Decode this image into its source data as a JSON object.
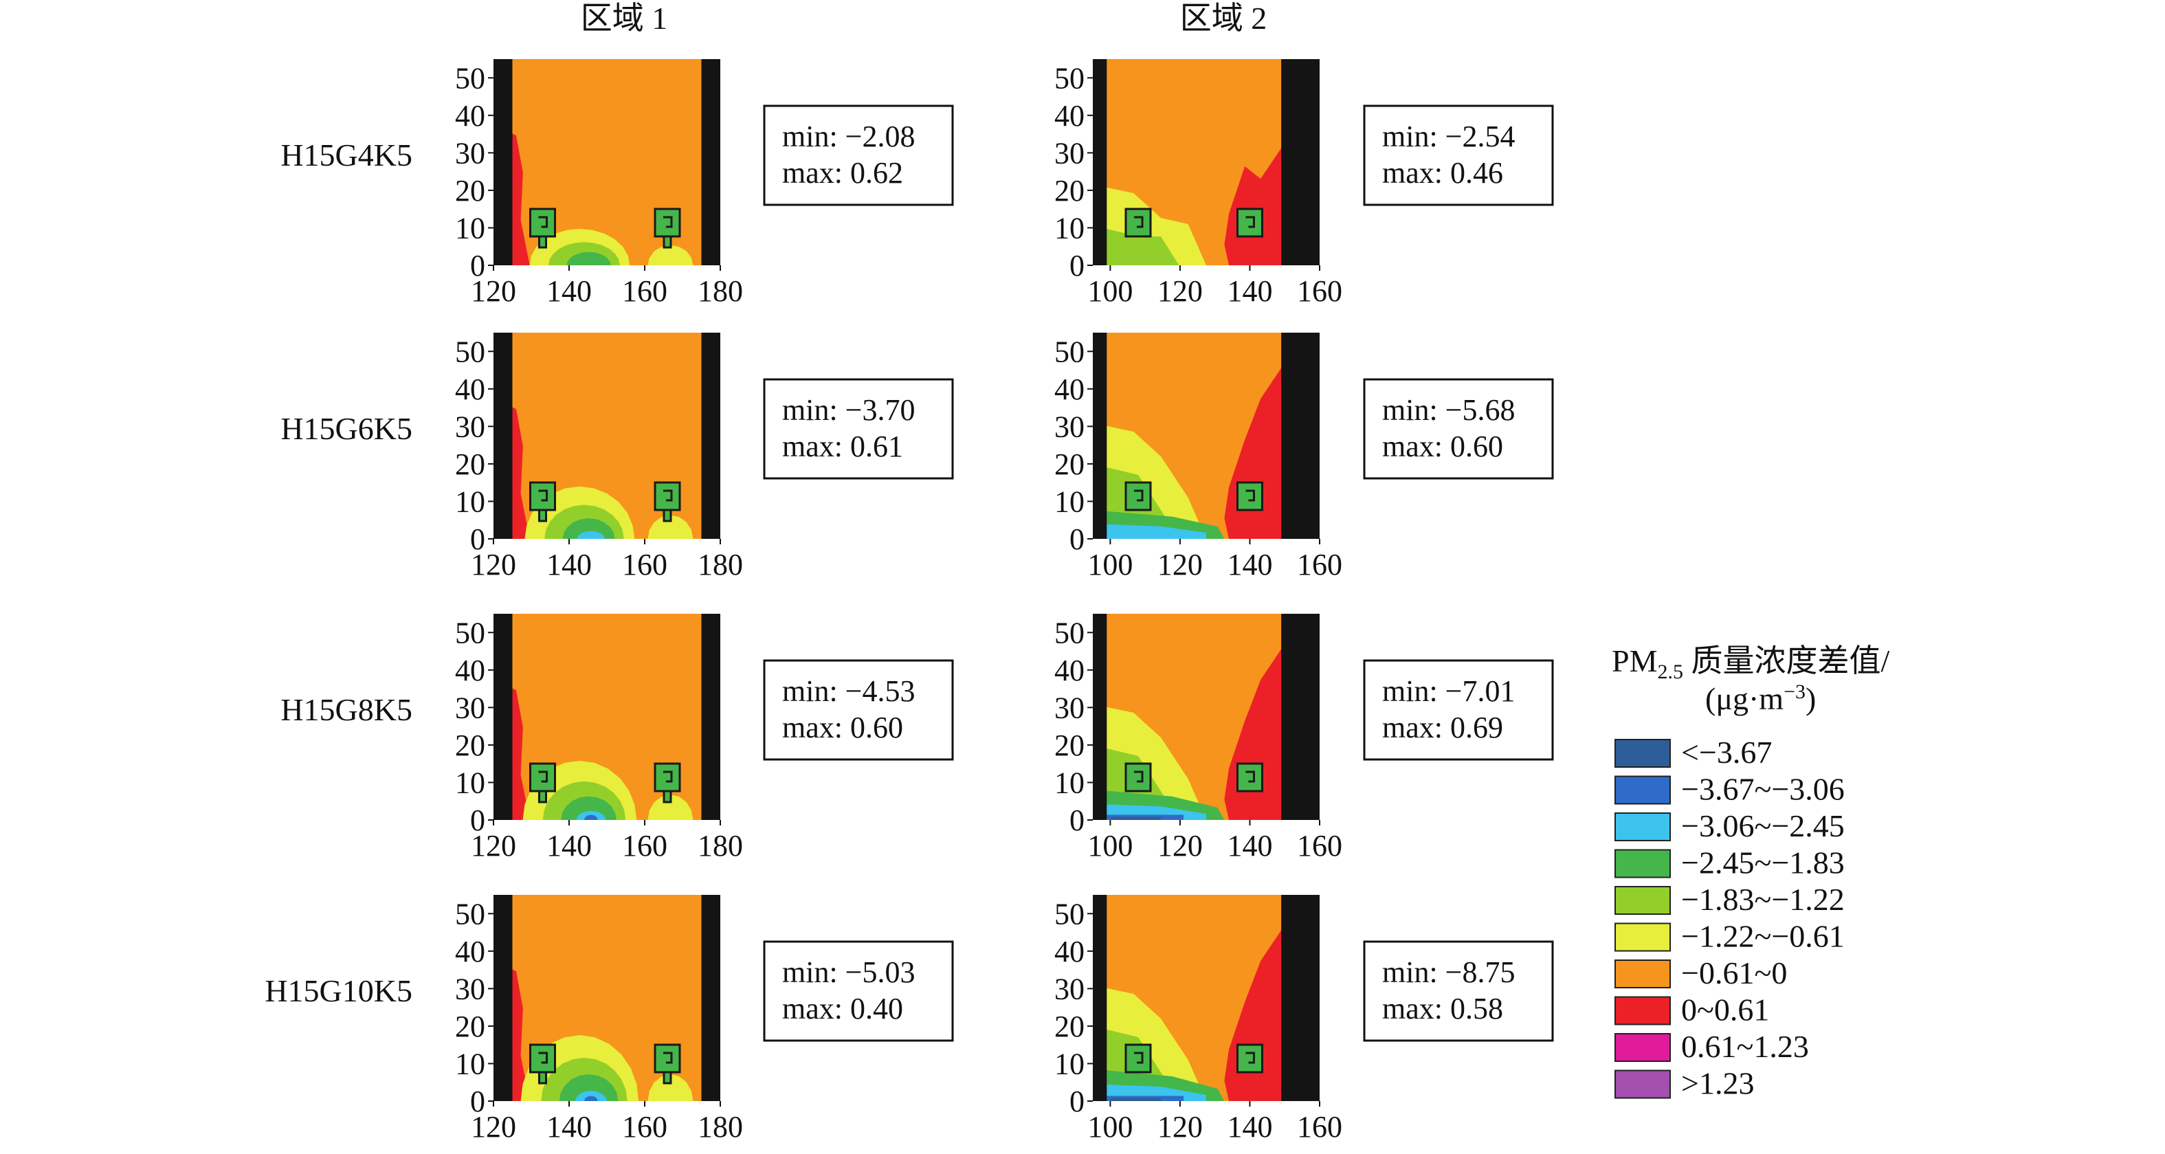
{
  "figure": {
    "column_titles": [
      "区域 1",
      "区域 2"
    ],
    "row_labels": [
      "H15G4K5",
      "H15G6K5",
      "H15G8K5",
      "H15G10K5"
    ]
  },
  "legend": {
    "title_prefix": "PM",
    "title_subscript": "2.5",
    "title_suffix": " 质量浓度差值/",
    "unit_prefix": "(μg·m",
    "unit_superscript": "−3",
    "unit_suffix": ")"
  },
  "colors": {
    "background_field": "#F7941D",
    "wall": "#141414",
    "text": "#111111"
  },
  "chart_data": {
    "type": "heatmap",
    "quantity": "PM2.5 mass concentration difference",
    "unit": "μg·m−3",
    "bins": [
      {
        "label": "<−3.67",
        "color": "#2E5E97"
      },
      {
        "label": "−3.67~−3.06",
        "color": "#2F6BC8"
      },
      {
        "label": "−3.06~−2.45",
        "color": "#3CC3EE"
      },
      {
        "label": "−2.45~−1.83",
        "color": "#45B649"
      },
      {
        "label": "−1.83~−1.22",
        "color": "#93CF2B"
      },
      {
        "label": "−1.22~−0.61",
        "color": "#E8EE3C"
      },
      {
        "label": "−0.61~0",
        "color": "#F7941D"
      },
      {
        "label": "0~0.61",
        "color": "#EC2128"
      },
      {
        "label": "0.61~1.23",
        "color": "#E11C9B"
      },
      {
        "label": ">1.23",
        "color": "#A350AE"
      }
    ],
    "regions": [
      {
        "name": "区域 1",
        "xlim": [
          120,
          180
        ],
        "xticks": [
          "120",
          "140",
          "160",
          "180"
        ],
        "ylim": [
          0,
          55
        ],
        "yticks": [
          "0",
          "10",
          "20",
          "30",
          "40",
          "50"
        ],
        "street_x": [
          125,
          175
        ],
        "trees_x": [
          133,
          166
        ]
      },
      {
        "name": "区域 2",
        "xlim": [
          95,
          160
        ],
        "xticks": [
          "100",
          "120",
          "140",
          "160"
        ],
        "ylim": [
          0,
          55
        ],
        "yticks": [
          "0",
          "10",
          "20",
          "30",
          "40",
          "50"
        ],
        "street_x": [
          99,
          149
        ],
        "trees_x": [
          108,
          140
        ]
      }
    ],
    "panels": [
      {
        "row": "H15G4K5",
        "region": "区域 1",
        "min": "−2.08",
        "max": "0.62",
        "min_label": "min: −2.08",
        "max_label": "max: 0.62"
      },
      {
        "row": "H15G4K5",
        "region": "区域 2",
        "min": "−2.54",
        "max": "0.46",
        "min_label": "min: −2.54",
        "max_label": "max: 0.46"
      },
      {
        "row": "H15G6K5",
        "region": "区域 1",
        "min": "−3.70",
        "max": "0.61",
        "min_label": "min: −3.70",
        "max_label": "max: 0.61"
      },
      {
        "row": "H15G6K5",
        "region": "区域 2",
        "min": "−5.68",
        "max": "0.60",
        "min_label": "min: −5.68",
        "max_label": "max: 0.60"
      },
      {
        "row": "H15G8K5",
        "region": "区域 1",
        "min": "−4.53",
        "max": "0.60",
        "min_label": "min: −4.53",
        "max_label": "max: 0.60"
      },
      {
        "row": "H15G8K5",
        "region": "区域 2",
        "min": "−7.01",
        "max": "0.69",
        "min_label": "min: −7.01",
        "max_label": "max: 0.69"
      },
      {
        "row": "H15G10K5",
        "region": "区域 1",
        "min": "−5.03",
        "max": "0.40",
        "min_label": "min: −5.03",
        "max_label": "max: 0.40"
      },
      {
        "row": "H15G10K5",
        "region": "区域 2",
        "min": "−8.75",
        "max": "0.58",
        "min_label": "min: −8.75",
        "max_label": "max: 0.58"
      }
    ]
  }
}
